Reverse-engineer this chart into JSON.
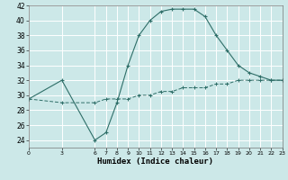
{
  "xlabel": "Humidex (Indice chaleur)",
  "background_color": "#cce8e8",
  "grid_color": "#ffffff",
  "line_color": "#2e6e68",
  "xlim": [
    0,
    23
  ],
  "ylim": [
    23,
    42
  ],
  "xticks": [
    0,
    3,
    6,
    7,
    8,
    9,
    10,
    11,
    12,
    13,
    14,
    15,
    16,
    17,
    18,
    19,
    20,
    21,
    22,
    23
  ],
  "yticks": [
    24,
    26,
    28,
    30,
    32,
    34,
    36,
    38,
    40,
    42
  ],
  "series1_x": [
    0,
    3,
    6,
    7,
    8,
    9,
    10,
    11,
    12,
    13,
    14,
    15,
    16,
    17,
    18,
    19,
    20,
    21,
    22,
    23
  ],
  "series1_y": [
    29.5,
    32,
    24,
    25,
    29,
    34,
    38,
    40,
    41.2,
    41.5,
    41.5,
    41.5,
    40.5,
    38,
    36,
    34,
    33,
    32.5,
    32,
    32
  ],
  "series2_x": [
    0,
    3,
    6,
    7,
    8,
    9,
    10,
    11,
    12,
    13,
    14,
    15,
    16,
    17,
    18,
    19,
    20,
    21,
    22,
    23
  ],
  "series2_y": [
    29.5,
    29,
    29,
    29.5,
    29.5,
    29.5,
    30,
    30,
    30.5,
    30.5,
    31,
    31,
    31,
    31.5,
    31.5,
    32,
    32,
    32,
    32,
    32
  ]
}
